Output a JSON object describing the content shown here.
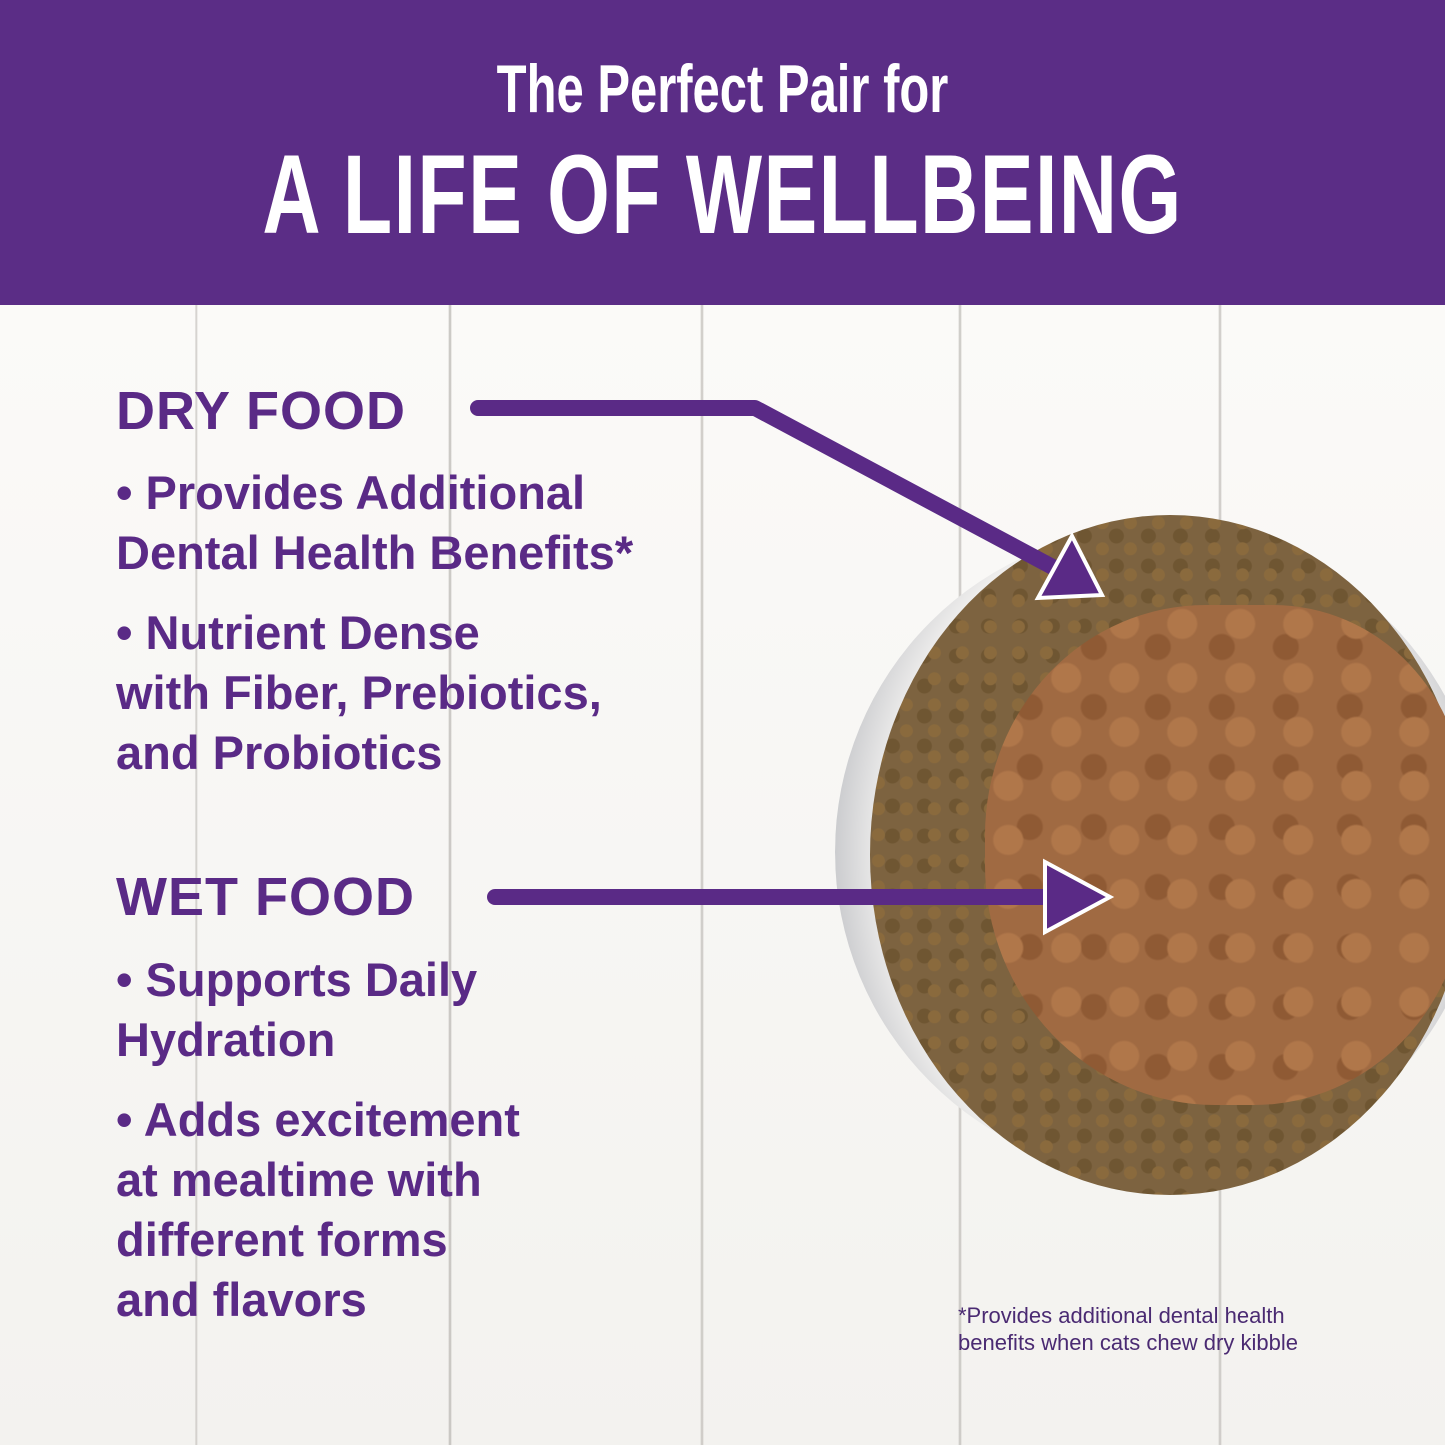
{
  "header": {
    "line1": "The Perfect Pair for",
    "line2": "A LIFE OF WELLBEING"
  },
  "dry": {
    "title": "DRY FOOD",
    "lines": [
      "• Provides Additional",
      "Dental Health Benefits*",
      "• Nutrient Dense",
      "with Fiber, Prebiotics,",
      "and Probiotics"
    ]
  },
  "wet": {
    "title": "WET FOOD",
    "lines": [
      "• Supports Daily",
      "Hydration",
      "• Adds excitement",
      "at mealtime with",
      "different forms",
      "and flavors"
    ]
  },
  "footnote": [
    "*Provides additional dental health",
    "benefits when cats chew dry kibble"
  ],
  "colors": {
    "brand": "#5b2d86"
  }
}
